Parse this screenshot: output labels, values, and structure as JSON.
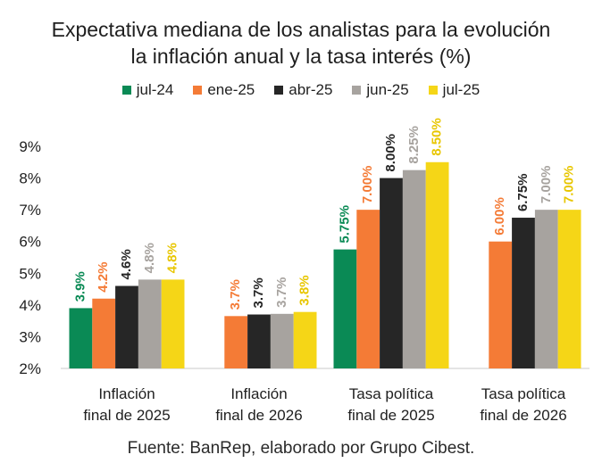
{
  "chart_data": {
    "type": "bar",
    "title_lines": [
      "Expectativa mediana de los analistas para la evolución",
      "la inflación anual y la tasa interés  (%)"
    ],
    "legend_position": "top",
    "ylim": [
      2,
      9
    ],
    "yticks": [
      2,
      3,
      4,
      5,
      6,
      7,
      8,
      9
    ],
    "ytick_labels": [
      "2%",
      "3%",
      "4%",
      "5%",
      "6%",
      "7%",
      "8%",
      "9%"
    ],
    "categories": [
      [
        "Inflación",
        "final de 2025"
      ],
      [
        "Inflación",
        "final de 2026"
      ],
      [
        "Tasa política",
        "final de 2025"
      ],
      [
        "Tasa política",
        "final de 2026"
      ]
    ],
    "series": [
      {
        "name": "jul-24",
        "color": "#0a8a55",
        "values": [
          3.9,
          null,
          5.75,
          null
        ],
        "labels": [
          "3.9%",
          "",
          "5.75%",
          ""
        ]
      },
      {
        "name": "ene-25",
        "color": "#f47b36",
        "values": [
          4.2,
          3.65,
          7.0,
          6.0
        ],
        "labels": [
          "4.2%",
          "3.7%",
          "7.00%",
          "6.00%"
        ]
      },
      {
        "name": "abr-25",
        "color": "#262626",
        "values": [
          4.6,
          3.7,
          8.0,
          6.75
        ],
        "labels": [
          "4.6%",
          "3.7%",
          "8.00%",
          "6.75%"
        ]
      },
      {
        "name": "jun-25",
        "color": "#a7a39f",
        "values": [
          4.8,
          3.72,
          8.25,
          7.0
        ],
        "labels": [
          "4.8%",
          "3.7%",
          "8.25%",
          "7.00%"
        ]
      },
      {
        "name": "jul-25",
        "color": "#f5d617",
        "values": [
          4.8,
          3.78,
          8.5,
          7.0
        ],
        "labels": [
          "4.8%",
          "3.8%",
          "8.50%",
          "7.00%"
        ]
      }
    ],
    "label_colors": [
      "#0a8a55",
      "#f47b36",
      "#262626",
      "#a7a39f",
      "#e8c600"
    ],
    "source_label": "Fuente:",
    "source_text": " BanRep, elaborado por Grupo Cibest."
  }
}
